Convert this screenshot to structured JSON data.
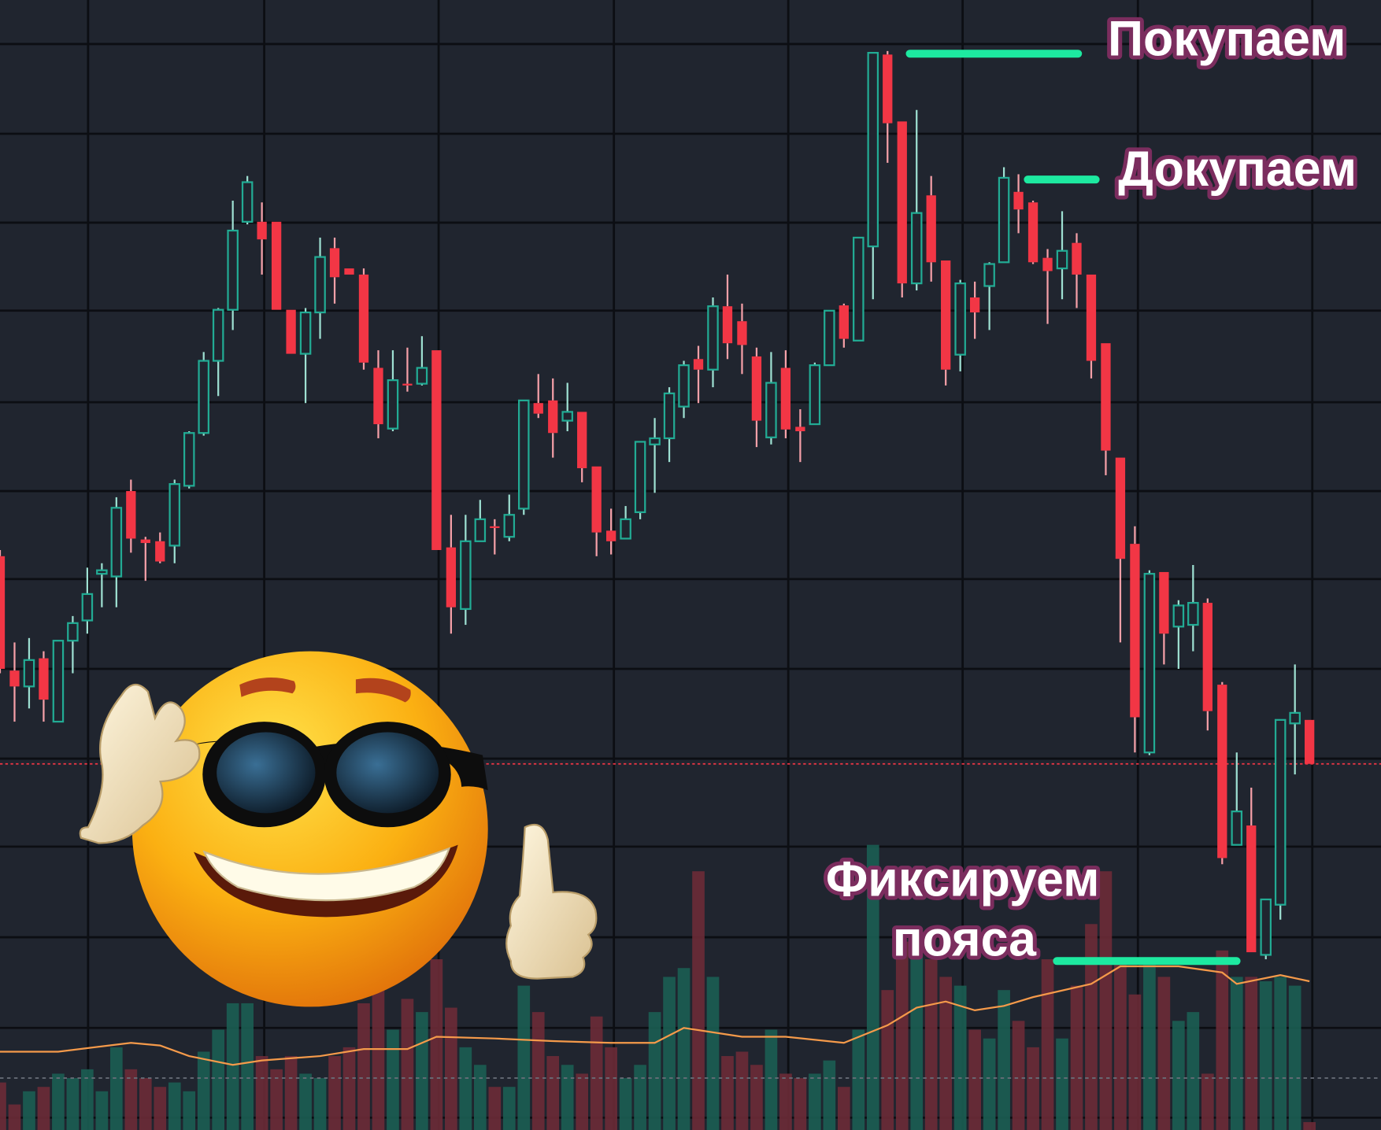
{
  "chart_data": {
    "type": "candlestick",
    "title": "",
    "xlabel": "",
    "ylabel": "",
    "grid": true,
    "ylim": [
      0,
      128.4
    ],
    "colors": {
      "background": "#20252f",
      "grid": "#0c0e13",
      "up": "#22ab94",
      "down": "#f23645",
      "volume_up": "#1b5e53",
      "volume_down": "#6b2b37",
      "moving_average": "#f59a4a",
      "annotation_line": "#1de9a0",
      "annotation_text": "#ffffff",
      "annotation_outline": "#7b2d5e",
      "last_price_line": "#f23645"
    },
    "ohlc": [
      [
        65.2,
        65.9,
        51.9,
        52.4
      ],
      [
        52.2,
        55.4,
        46.4,
        50.4
      ],
      [
        50.4,
        55.9,
        47.9,
        53.4
      ],
      [
        53.6,
        54.4,
        46.4,
        48.9
      ],
      [
        46.4,
        55.6,
        46.4,
        55.6
      ],
      [
        55.6,
        58.4,
        51.9,
        57.6
      ],
      [
        57.9,
        63.9,
        56.4,
        60.9
      ],
      [
        63.2,
        64.4,
        59.4,
        63.6
      ],
      [
        62.9,
        71.9,
        59.4,
        70.7
      ],
      [
        72.6,
        73.9,
        65.6,
        67.2
      ],
      [
        67.1,
        67.4,
        62.4,
        66.7
      ],
      [
        66.9,
        67.9,
        64.4,
        64.6
      ],
      [
        66.4,
        73.9,
        64.4,
        73.4
      ],
      [
        73.2,
        79.4,
        72.9,
        79.2
      ],
      [
        79.2,
        88.4,
        78.9,
        87.4
      ],
      [
        87.4,
        93.4,
        83.4,
        93.2
      ],
      [
        93.2,
        105.6,
        90.9,
        102.2
      ],
      [
        103.2,
        108.4,
        102.9,
        107.7
      ],
      [
        103.2,
        105.4,
        97.2,
        101.2
      ],
      [
        103.2,
        103.2,
        93.2,
        93.2
      ],
      [
        93.2,
        93.2,
        88.2,
        88.2
      ],
      [
        88.2,
        93.4,
        82.6,
        92.9
      ],
      [
        92.9,
        101.4,
        89.9,
        99.2
      ],
      [
        100.2,
        101.4,
        93.9,
        96.9
      ],
      [
        97.9,
        97.9,
        97.2,
        97.2
      ],
      [
        97.2,
        97.9,
        86.4,
        87.2
      ],
      [
        86.6,
        88.6,
        78.6,
        80.2
      ],
      [
        79.7,
        88.6,
        79.4,
        85.2
      ],
      [
        84.8,
        88.9,
        83.9,
        84.6
      ],
      [
        84.8,
        90.2,
        84.6,
        86.6
      ],
      [
        88.6,
        88.6,
        65.9,
        65.9
      ],
      [
        66.2,
        69.9,
        56.4,
        59.4
      ],
      [
        59.2,
        69.9,
        57.4,
        66.9
      ],
      [
        66.9,
        71.6,
        66.9,
        69.4
      ],
      [
        68.6,
        69.4,
        65.4,
        68.4
      ],
      [
        67.4,
        72.2,
        66.9,
        69.9
      ],
      [
        70.6,
        82.9,
        69.9,
        82.9
      ],
      [
        82.6,
        85.9,
        80.9,
        81.4
      ],
      [
        82.9,
        85.4,
        76.4,
        79.2
      ],
      [
        80.6,
        84.9,
        79.4,
        81.6
      ],
      [
        81.6,
        81.6,
        73.6,
        75.2
      ],
      [
        75.4,
        75.4,
        65.2,
        67.9
      ],
      [
        68.1,
        70.6,
        65.4,
        66.9
      ],
      [
        67.2,
        70.9,
        67.2,
        69.4
      ],
      [
        70.2,
        78.2,
        69.4,
        78.2
      ],
      [
        77.9,
        80.9,
        72.4,
        78.6
      ],
      [
        78.6,
        84.4,
        75.9,
        83.7
      ],
      [
        82.2,
        87.4,
        80.9,
        86.9
      ],
      [
        87.6,
        89.1,
        82.6,
        86.4
      ],
      [
        86.4,
        94.6,
        84.4,
        93.6
      ],
      [
        93.6,
        97.2,
        87.6,
        89.4
      ],
      [
        91.9,
        93.9,
        85.9,
        89.2
      ],
      [
        87.9,
        88.9,
        77.6,
        80.6
      ],
      [
        78.7,
        88.4,
        77.9,
        84.9
      ],
      [
        86.6,
        88.6,
        78.6,
        79.6
      ],
      [
        79.9,
        81.9,
        75.9,
        79.4
      ],
      [
        80.2,
        87.2,
        80.2,
        86.9
      ],
      [
        86.9,
        93.1,
        86.9,
        93.1
      ],
      [
        93.7,
        93.9,
        88.9,
        89.9
      ],
      [
        89.7,
        101.4,
        89.7,
        101.4
      ],
      [
        100.4,
        122.4,
        94.4,
        122.4
      ],
      [
        122.2,
        122.6,
        109.9,
        114.4
      ],
      [
        114.6,
        114.6,
        94.6,
        96.2
      ],
      [
        96.2,
        115.9,
        95.4,
        104.2
      ],
      [
        106.2,
        108.4,
        96.4,
        98.6
      ],
      [
        98.8,
        98.8,
        84.6,
        86.4
      ],
      [
        88.1,
        96.6,
        86.2,
        96.2
      ],
      [
        94.6,
        96.4,
        89.9,
        92.9
      ],
      [
        95.9,
        98.6,
        90.9,
        98.4
      ],
      [
        98.6,
        109.4,
        98.6,
        108.2
      ],
      [
        106.6,
        108.6,
        101.9,
        104.6
      ],
      [
        105.4,
        105.6,
        98.4,
        98.6
      ],
      [
        99.1,
        100.1,
        91.6,
        97.6
      ],
      [
        97.9,
        104.4,
        94.4,
        99.9
      ],
      [
        100.8,
        101.9,
        93.4,
        97.2
      ],
      [
        97.2,
        97.2,
        85.4,
        87.4
      ],
      [
        89.4,
        89.4,
        74.4,
        77.2
      ],
      [
        76.4,
        76.4,
        55.4,
        64.9
      ],
      [
        66.6,
        68.6,
        42.9,
        46.9
      ],
      [
        42.9,
        63.6,
        42.6,
        63.2
      ],
      [
        63.4,
        63.4,
        52.9,
        56.4
      ],
      [
        57.2,
        60.2,
        52.4,
        59.6
      ],
      [
        57.4,
        64.2,
        54.4,
        59.9
      ],
      [
        59.9,
        60.4,
        45.4,
        47.6
      ],
      [
        50.6,
        50.9,
        30.2,
        30.9
      ],
      [
        32.4,
        42.9,
        32.4,
        36.2
      ],
      [
        34.6,
        38.9,
        20.2,
        20.2
      ],
      [
        19.9,
        26.2,
        19.4,
        26.2
      ],
      [
        25.6,
        46.6,
        23.9,
        46.6
      ],
      [
        46.2,
        52.9,
        40.4,
        47.4
      ],
      [
        46.6,
        46.6,
        41.6,
        41.6
      ]
    ],
    "volume": [
      5,
      2.5,
      4,
      4.5,
      6,
      5.5,
      6.5,
      4,
      9,
      6.5,
      5.5,
      4.5,
      5,
      4,
      8.5,
      11,
      14,
      14,
      8,
      6.5,
      8,
      6,
      5.5,
      8,
      9,
      14,
      16,
      11,
      14.5,
      13,
      19,
      13.5,
      9,
      7,
      4.5,
      4.5,
      16,
      13,
      8,
      7,
      6,
      12.5,
      9,
      5.5,
      7,
      13,
      17,
      18,
      29,
      17,
      8,
      8.5,
      7,
      11,
      6,
      5.5,
      6,
      7.5,
      4.5,
      11,
      32,
      15.5,
      21,
      20,
      19,
      17,
      16,
      11,
      10,
      15.5,
      12,
      9,
      19,
      10,
      16,
      23,
      29,
      19,
      15,
      19,
      17,
      12,
      13,
      6,
      20,
      17,
      17,
      16.5,
      17,
      16,
      0.5
    ],
    "moving_average": [
      [
        0,
        8.5
      ],
      [
        4,
        8.5
      ],
      [
        9,
        9.5
      ],
      [
        11,
        9.2
      ],
      [
        13,
        8
      ],
      [
        16,
        7
      ],
      [
        18,
        7.5
      ],
      [
        22,
        8
      ],
      [
        25,
        8.8
      ],
      [
        28,
        8.8
      ],
      [
        30,
        10.2
      ],
      [
        34,
        10
      ],
      [
        38,
        9.7
      ],
      [
        42,
        9.5
      ],
      [
        45,
        9.5
      ],
      [
        47,
        11.2
      ],
      [
        51,
        10.2
      ],
      [
        54,
        10.2
      ],
      [
        58,
        9.5
      ],
      [
        61,
        11.5
      ],
      [
        63,
        13.5
      ],
      [
        65,
        14.2
      ],
      [
        67,
        13.2
      ],
      [
        69,
        13.7
      ],
      [
        71,
        14.7
      ],
      [
        75,
        16.2
      ],
      [
        77,
        18.2
      ],
      [
        81,
        18.2
      ],
      [
        84,
        17.5
      ],
      [
        85,
        16.2
      ],
      [
        88,
        17.2
      ],
      [
        90,
        16.5
      ]
    ],
    "last_price": 41.6,
    "volume_reference_level": 5.5,
    "annotations": [
      {
        "text": "Покупаем",
        "price": 122.3
      },
      {
        "text": "Докупаем",
        "price": 108.0
      },
      {
        "text": "Фиксируем",
        "text2": "пояса",
        "volume_level": 18.8
      }
    ]
  },
  "overlay": {
    "sticker": "cool-smiley-sunglasses-thumbs-up-icon"
  }
}
